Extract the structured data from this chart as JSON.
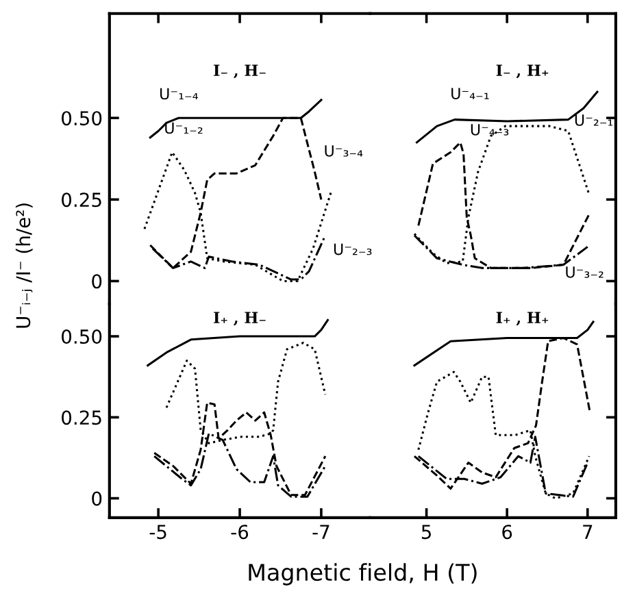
{
  "chart_data": [
    {
      "type": "line",
      "title": "I₋ , H₋",
      "ylabel": "U⁻ᵢ₋ⱼ /I⁻ (h/e²)",
      "xlim": [
        -4.4,
        -7.6
      ],
      "xticks": [
        -5,
        -6,
        -7
      ],
      "ylim": [
        -0.07,
        0.82
      ],
      "yticks": [
        0,
        0.25,
        {
          "value": 0.5,
          "label": "0.50"
        }
      ],
      "tick_labels": "y",
      "grid": false,
      "legend": false,
      "series": [
        {
          "color": "#000000",
          "line_style": "solid",
          "x": [
            -4.9,
            -5.0,
            -5.1,
            -5.25,
            -6.0,
            -6.75,
            -6.85,
            -7.0
          ],
          "values": [
            0.44,
            0.46,
            0.485,
            0.5,
            0.5,
            0.5,
            0.52,
            0.555
          ]
        },
        {
          "color": "#000000",
          "line_style": "dotted",
          "x": [
            -4.83,
            -5.17,
            -5.32,
            -5.45,
            -5.52,
            -5.6,
            -5.8,
            -6.0,
            -6.19,
            -6.53,
            -6.71,
            -6.9,
            -7.13
          ],
          "values": [
            0.16,
            0.395,
            0.34,
            0.27,
            0.21,
            0.07,
            0.06,
            0.055,
            0.05,
            0.0,
            0.0,
            0.1,
            0.28
          ]
        },
        {
          "color": "#000000",
          "line_style": "dashed",
          "x": [
            -4.9,
            -5.18,
            -5.4,
            -5.52,
            -5.6,
            -5.69,
            -5.96,
            -6.19,
            -6.41,
            -6.53,
            -6.75,
            -6.92,
            -7.0
          ],
          "values": [
            0.11,
            0.04,
            0.09,
            0.21,
            0.31,
            0.33,
            0.33,
            0.355,
            0.445,
            0.5,
            0.5,
            0.335,
            0.25
          ]
        },
        {
          "color": "#000000",
          "line_style": "dashdot",
          "x": [
            -4.93,
            -5.18,
            -5.4,
            -5.57,
            -5.62,
            -5.9,
            -6.24,
            -6.63,
            -6.75,
            -6.85,
            -7.05
          ],
          "values": [
            0.1,
            0.04,
            0.06,
            0.04,
            0.075,
            0.06,
            0.05,
            0.005,
            0.005,
            0.03,
            0.14
          ]
        }
      ],
      "annotations": [
        {
          "text": "U⁻₁₋₄",
          "x": -5.25,
          "y": 0.5
        },
        {
          "text": "U⁻₁₋₂",
          "x": -5.17,
          "y": 0.395
        },
        {
          "text": "U⁻₃₋₄",
          "x": -6.75,
          "y": 0.5
        },
        {
          "text": "U⁻₂₋₃",
          "x": -7.05,
          "y": 0.14
        }
      ]
    },
    {
      "type": "line",
      "title": "I₋ , H₊",
      "xlim": [
        4.3,
        7.35
      ],
      "xticks": [
        5,
        6,
        7
      ],
      "ylim": [
        -0.07,
        0.82
      ],
      "yticks": [
        0,
        0.25,
        0.5
      ],
      "tick_labels": false,
      "grid": false,
      "legend": false,
      "series": [
        {
          "color": "#000000",
          "line_style": "solid",
          "x": [
            4.88,
            5.13,
            5.35,
            6.0,
            6.76,
            6.95,
            7.12
          ],
          "values": [
            0.425,
            0.475,
            0.495,
            0.49,
            0.495,
            0.53,
            0.58
          ]
        },
        {
          "color": "#000000",
          "line_style": "dashed",
          "x": [
            4.9,
            5.08,
            5.3,
            5.42,
            5.46,
            5.5,
            5.55,
            5.6,
            5.8,
            6.3,
            6.7,
            7.03
          ],
          "values": [
            0.17,
            0.36,
            0.395,
            0.425,
            0.39,
            0.195,
            0.14,
            0.07,
            0.04,
            0.04,
            0.05,
            0.21
          ]
        },
        {
          "color": "#000000",
          "line_style": "dotted",
          "x": [
            4.85,
            5.08,
            5.25,
            5.45,
            5.52,
            5.64,
            5.8,
            5.98,
            6.53,
            6.76,
            7.02
          ],
          "values": [
            0.145,
            0.085,
            0.055,
            0.06,
            0.195,
            0.335,
            0.445,
            0.475,
            0.475,
            0.46,
            0.265
          ]
        },
        {
          "color": "#000000",
          "line_style": "dashdot",
          "x": [
            4.85,
            5.13,
            5.45,
            5.69,
            6.2,
            6.7,
            7.0
          ],
          "values": [
            0.14,
            0.07,
            0.05,
            0.04,
            0.04,
            0.05,
            0.105
          ]
        }
      ],
      "annotations": [
        {
          "text": "U⁻₄₋₁",
          "x": 5.35,
          "y": 0.495
        },
        {
          "text": "U⁻₄₋₃",
          "x": 5.42,
          "y": 0.425
        },
        {
          "text": "U⁻₂₋₁",
          "x": 6.76,
          "y": 0.46
        },
        {
          "text": "U⁻₃₋₂",
          "x": 7.0,
          "y": 0.105
        }
      ]
    },
    {
      "type": "line",
      "title": "I₊ , H₋",
      "xlabel": "Magnetic field, H (T)",
      "xlim": [
        -4.4,
        -7.6
      ],
      "xticks": [
        -5,
        -6,
        -7
      ],
      "ylim": [
        -0.06,
        0.6
      ],
      "yticks": [
        0,
        0.25,
        {
          "value": 0.5,
          "label": "0.50"
        }
      ],
      "grid": false,
      "legend": false,
      "series": [
        {
          "color": "#000000",
          "line_style": "solid",
          "x": [
            -4.87,
            -5.1,
            -5.4,
            -6.0,
            -6.92,
            -7.0,
            -7.08
          ],
          "values": [
            0.41,
            0.45,
            0.49,
            0.5,
            0.5,
            0.52,
            0.55
          ]
        },
        {
          "color": "#000000",
          "line_style": "dashed",
          "x": [
            -4.95,
            -5.18,
            -5.4,
            -5.52,
            -5.6,
            -5.69,
            -5.74,
            -5.85,
            -5.96,
            -6.08,
            -6.19,
            -6.3,
            -6.38,
            -6.45,
            -6.63,
            -6.8,
            -7.05
          ],
          "values": [
            0.14,
            0.1,
            0.045,
            0.15,
            0.295,
            0.29,
            0.185,
            0.21,
            0.24,
            0.265,
            0.24,
            0.265,
            0.195,
            0.1,
            0.01,
            0.01,
            0.13
          ]
        },
        {
          "color": "#000000",
          "line_style": "dotted",
          "x": [
            -5.1,
            -5.35,
            -5.45,
            -5.52,
            -5.62,
            -5.79,
            -6.02,
            -6.24,
            -6.38,
            -6.41,
            -6.47,
            -6.58,
            -6.78,
            -6.92,
            -7.05
          ],
          "values": [
            0.28,
            0.425,
            0.4,
            0.21,
            0.17,
            0.18,
            0.19,
            0.19,
            0.2,
            0.21,
            0.36,
            0.46,
            0.48,
            0.46,
            0.32
          ]
        },
        {
          "color": "#000000",
          "line_style": "dashdot",
          "x": [
            -4.95,
            -5.29,
            -5.4,
            -5.52,
            -5.62,
            -5.79,
            -5.96,
            -6.13,
            -6.3,
            -6.41,
            -6.47,
            -6.63,
            -6.83,
            -7.05
          ],
          "values": [
            0.13,
            0.06,
            0.04,
            0.09,
            0.2,
            0.18,
            0.09,
            0.05,
            0.05,
            0.13,
            0.04,
            0.005,
            0.005,
            0.1
          ]
        }
      ]
    },
    {
      "type": "line",
      "title": "I₊ , H₊",
      "xlim": [
        4.3,
        7.35
      ],
      "xticks": [
        5,
        6,
        7
      ],
      "ylim": [
        -0.06,
        0.6
      ],
      "yticks": [
        0,
        0.25,
        0.5
      ],
      "tick_labels": "x",
      "grid": false,
      "legend": false,
      "series": [
        {
          "color": "#000000",
          "line_style": "solid",
          "x": [
            4.85,
            5.3,
            6.0,
            6.87,
            7.0,
            7.07
          ],
          "values": [
            0.41,
            0.485,
            0.495,
            0.495,
            0.52,
            0.545
          ]
        },
        {
          "color": "#000000",
          "line_style": "dotted",
          "x": [
            4.9,
            5.02,
            5.13,
            5.34,
            5.42,
            5.55,
            5.69,
            5.77,
            5.86,
            6.1,
            6.29,
            6.35,
            6.48,
            6.6,
            6.82,
            7.02
          ],
          "values": [
            0.15,
            0.265,
            0.36,
            0.39,
            0.36,
            0.295,
            0.375,
            0.375,
            0.195,
            0.195,
            0.21,
            0.13,
            0.015,
            0.0,
            0.015,
            0.13
          ]
        },
        {
          "color": "#000000",
          "line_style": "dashed",
          "x": [
            4.85,
            5.13,
            5.3,
            5.52,
            5.69,
            5.86,
            6.09,
            6.26,
            6.36,
            6.43,
            6.51,
            6.7,
            6.87,
            7.03
          ],
          "values": [
            0.13,
            0.07,
            0.03,
            0.11,
            0.08,
            0.065,
            0.155,
            0.17,
            0.225,
            0.35,
            0.485,
            0.495,
            0.475,
            0.265
          ]
        },
        {
          "color": "#000000",
          "line_style": "dashdot",
          "x": [
            4.9,
            5.25,
            5.47,
            5.69,
            5.92,
            6.14,
            6.29,
            6.35,
            6.48,
            6.82,
            7.0
          ],
          "values": [
            0.13,
            0.06,
            0.06,
            0.045,
            0.065,
            0.13,
            0.11,
            0.19,
            0.015,
            0.005,
            0.11
          ]
        }
      ]
    }
  ]
}
